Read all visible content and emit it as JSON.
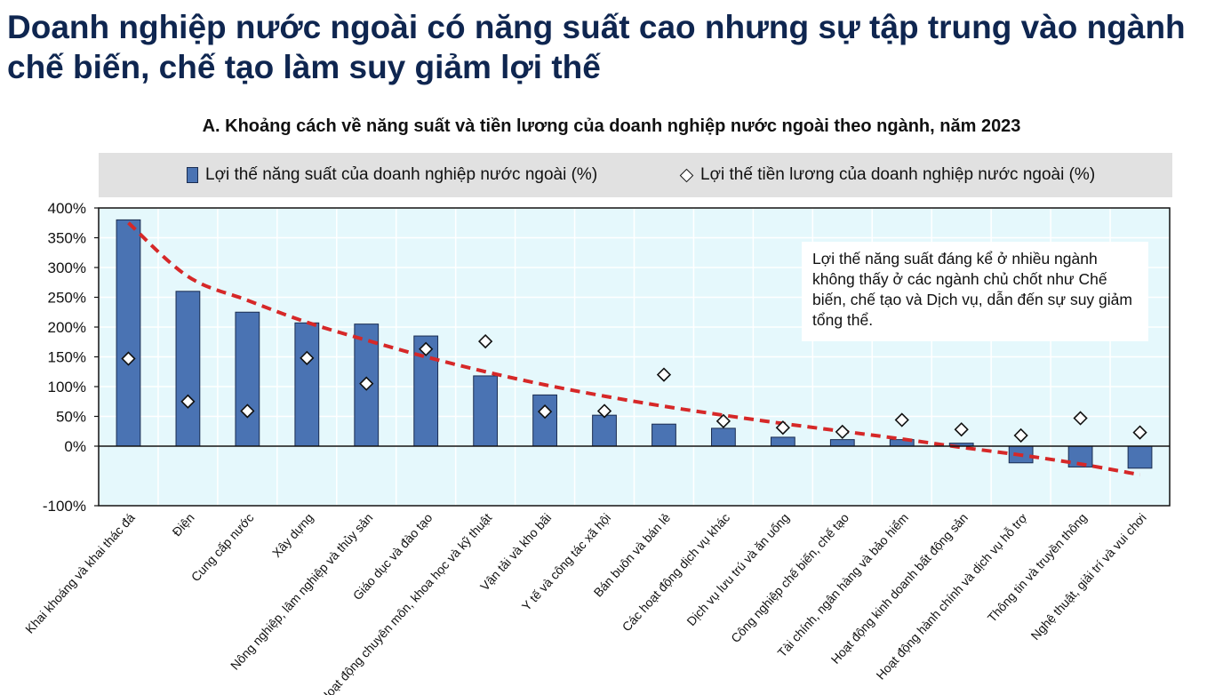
{
  "headline": "Doanh nghiệp nước ngoài có năng suất cao nhưng sự tập trung vào ngành chế biến, chế tạo làm suy giảm lợi thế",
  "annotation": "Lợi thế năng suất đáng kể ở nhiều ngành không thấy ở các ngành chủ chốt như Chế biến, chế tạo và Dịch vụ, dẫn đến sự suy giảm tổng thể.",
  "colors": {
    "headline": "#0f2650",
    "bar_fill": "#4a73b3",
    "bar_stroke": "#1a2c50",
    "plot_background": "#e5f8fc",
    "trend_line": "#d62828",
    "legend_background": "#e1e1e1"
  },
  "chart_data": {
    "type": "bar",
    "title": "A. Khoảng cách về năng suất và tiền lương của doanh nghiệp nước ngoài theo ngành, năm 2023",
    "xlabel": "",
    "ylabel": "",
    "ylim": [
      -100,
      400
    ],
    "yticks": [
      -100,
      0,
      50,
      100,
      150,
      200,
      250,
      300,
      350,
      400
    ],
    "ytick_labels": [
      "-100%",
      "0%",
      "50%",
      "100%",
      "150%",
      "200%",
      "250%",
      "300%",
      "350%",
      "400%"
    ],
    "grid": true,
    "legend_position": "top",
    "categories": [
      "Khai khoáng và khai thác đá",
      "Điện",
      "Cung cấp nước",
      "Xây dựng",
      "Nông nghiệp, lâm nghiệp và thủy sản",
      "Giáo dục và đào tạo",
      "Hoạt động chuyên môn, khoa học và kỹ thuật",
      "Vận tải và kho bãi",
      "Y tế và công tác xã hội",
      "Bán buôn và bán lẻ",
      "Các hoạt động dịch vụ khác",
      "Dịch vụ lưu trú và ăn uống",
      "Công nghiệp chế biến, chế tạo",
      "Tài chính, ngân hàng và bảo hiểm",
      "Hoạt động kinh doanh bất động sản",
      "Hoạt động hành chính và dịch vụ hỗ trợ",
      "Thông tin và truyền thông",
      "Nghệ thuật, giải trí và vui chơi"
    ],
    "series": [
      {
        "name": "Lợi thế năng suất của doanh nghiệp nước ngoài (%)",
        "kind": "bar",
        "values": [
          380,
          260,
          225,
          207,
          205,
          185,
          118,
          86,
          52,
          37,
          30,
          15,
          11,
          11,
          5,
          -28,
          -35,
          -37
        ]
      },
      {
        "name": "Lợi thế tiền lương của doanh nghiệp nước ngoài (%)",
        "kind": "marker",
        "values": [
          147,
          75,
          59,
          148,
          105,
          163,
          176,
          58,
          59,
          120,
          42,
          31,
          24,
          44,
          28,
          18,
          47,
          23
        ]
      }
    ],
    "trend_line": {
      "style": "dashed",
      "values": [
        375,
        285,
        245,
        208,
        178,
        150,
        125,
        103,
        84,
        67,
        52,
        38,
        25,
        12,
        -2,
        -15,
        -30,
        -48
      ]
    }
  }
}
